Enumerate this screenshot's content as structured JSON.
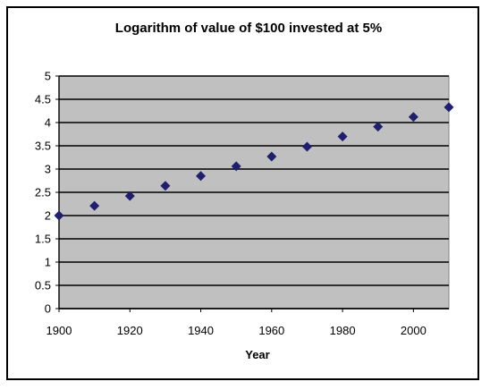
{
  "chart_data": {
    "type": "scatter",
    "title": "Logarithm of value of $100 invested at 5%",
    "xlabel": "Year",
    "ylabel": "",
    "xlim": [
      1900,
      2010
    ],
    "ylim": [
      0,
      5
    ],
    "x_ticks": [
      "1900",
      "1920",
      "1940",
      "1960",
      "1980",
      "2000"
    ],
    "y_ticks": [
      "0",
      "0.5",
      "1",
      "1.5",
      "2",
      "2.5",
      "3",
      "3.5",
      "4",
      "4.5",
      "5"
    ],
    "grid": true,
    "plot_background": "#c0c0c0",
    "marker_color": "#1f1f6e",
    "series": [
      {
        "x": [
          1900,
          1910,
          1920,
          1930,
          1940,
          1950,
          1960,
          1970,
          1980,
          1990,
          2000,
          2010
        ],
        "y": [
          2.0,
          2.21,
          2.42,
          2.64,
          2.85,
          3.06,
          3.27,
          3.48,
          3.7,
          3.91,
          4.12,
          4.33
        ]
      }
    ]
  }
}
